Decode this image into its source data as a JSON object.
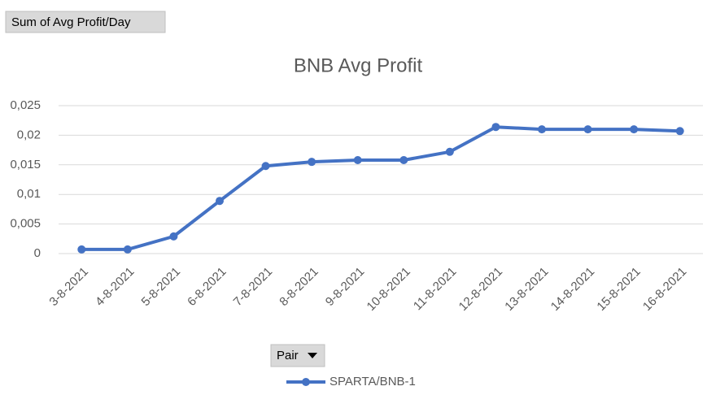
{
  "chart_data": {
    "type": "line",
    "value_field_button": "Sum of Avg Profit/Day",
    "title": "BNB Avg Profit",
    "legend_field_button": "Pair",
    "categories": [
      "3-8-2021",
      "4-8-2021",
      "5-8-2021",
      "6-8-2021",
      "7-8-2021",
      "8-8-2021",
      "9-8-2021",
      "10-8-2021",
      "11-8-2021",
      "12-8-2021",
      "13-8-2021",
      "14-8-2021",
      "15-8-2021",
      "16-8-2021"
    ],
    "series": [
      {
        "name": "SPARTA/BNB-1",
        "color": "#4472c4",
        "values": [
          0.0007,
          0.0007,
          0.0029,
          0.0089,
          0.0148,
          0.0155,
          0.0158,
          0.0158,
          0.0172,
          0.0214,
          0.021,
          0.021,
          0.021,
          0.0207
        ]
      }
    ],
    "ylim": [
      0,
      0.025
    ],
    "yticks": [
      0,
      {
        "value": 0.005,
        "label": "0,005"
      },
      {
        "value": 0.01,
        "label": "0,01"
      },
      {
        "value": 0.015,
        "label": "0,015"
      },
      {
        "value": 0.02,
        "label": "0,02"
      },
      {
        "value": 0.025,
        "label": "0,025"
      }
    ],
    "grid": true
  }
}
